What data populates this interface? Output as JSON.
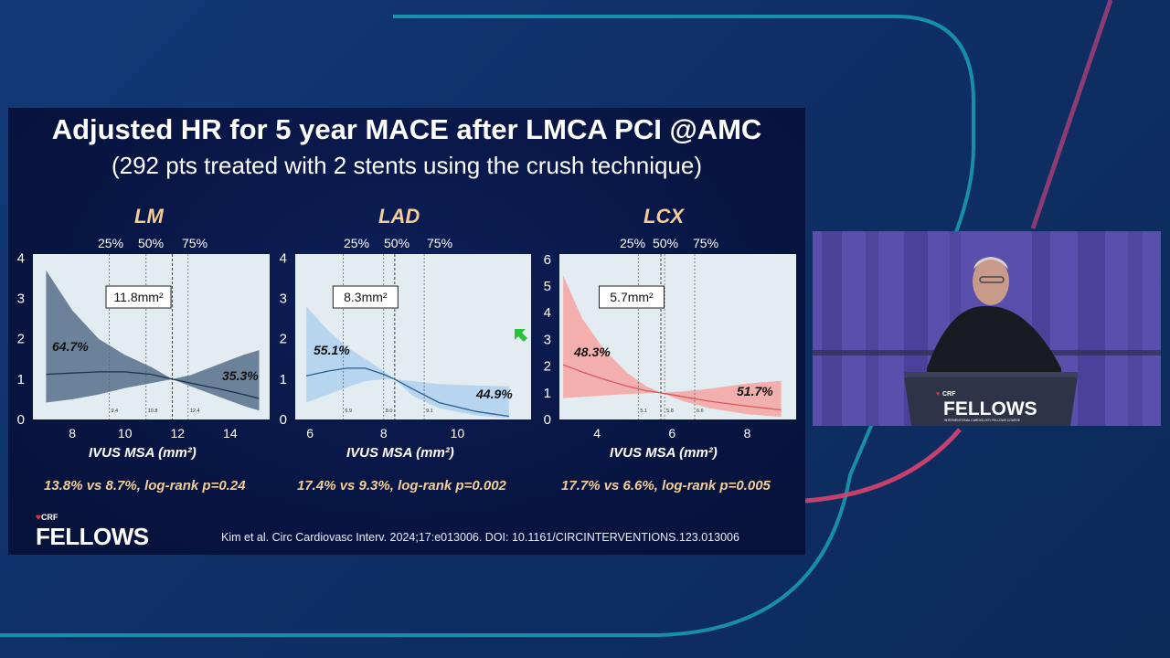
{
  "slide": {
    "title": "Adjusted HR for 5 year MACE after LMCA PCI @AMC",
    "subtitle": "(292 pts treated with 2 stents using the crush technique)",
    "citation": "Kim et al. Circ Cardiovasc Interv. 2024;17:e013006. DOI: 10.1161/CIRCINTERVENTIONS.123.013006",
    "logo_small": "CRF",
    "logo_big": "FELLOWS"
  },
  "video": {
    "podium_small": "CRF",
    "podium_big": "FELLOWS",
    "podium_tagline": "INTERVENTIONAL CARDIOLOGY FELLOWS COURSE"
  },
  "chart_data": [
    {
      "type": "line",
      "panel": "LM",
      "xlabel": "IVUS MSA (mm²)",
      "xticks": [
        8,
        10,
        12,
        14
      ],
      "xlim": [
        6.5,
        15.5
      ],
      "yticks": [
        0,
        1,
        2,
        3,
        4
      ],
      "ylim": [
        0,
        4.1
      ],
      "percentile_labels": [
        "25%",
        "50%",
        "75%"
      ],
      "percentile_values": [
        9.4,
        10.8,
        12.4
      ],
      "percentile_text": [
        "9.4",
        "10.8",
        "12.4"
      ],
      "reference_value": 11.8,
      "reference_label": "11.8mm²",
      "x": [
        7.0,
        8.0,
        9.0,
        10.0,
        11.0,
        11.8,
        12.5,
        13.5,
        14.5,
        15.1
      ],
      "hr": [
        1.12,
        1.15,
        1.18,
        1.18,
        1.12,
        1.0,
        0.9,
        0.77,
        0.62,
        0.52
      ],
      "lower": [
        0.42,
        0.5,
        0.62,
        0.78,
        0.9,
        1.0,
        0.82,
        0.58,
        0.34,
        0.22
      ],
      "upper": [
        3.7,
        2.7,
        2.0,
        1.6,
        1.3,
        1.0,
        1.1,
        1.35,
        1.6,
        1.72
      ],
      "left_annotation": "64.7%",
      "right_annotation": "35.3%",
      "stat": "13.8% vs 8.7%, log-rank p=0.24",
      "line_color": "#1c3350",
      "band_color": "#5d7790"
    },
    {
      "type": "line",
      "panel": "LAD",
      "xlabel": "IVUS MSA (mm²)",
      "xticks": [
        6,
        8,
        10
      ],
      "xlim": [
        5.6,
        12.0
      ],
      "yticks": [
        0,
        1,
        2,
        3,
        4
      ],
      "ylim": [
        0,
        4.1
      ],
      "percentile_labels": [
        "25%",
        "50%",
        "75%"
      ],
      "percentile_values": [
        6.9,
        8.0,
        9.1
      ],
      "percentile_text": [
        "6.9",
        "8.0",
        "9.1"
      ],
      "reference_value": 8.3,
      "reference_label": "8.3mm²",
      "x": [
        5.9,
        6.5,
        7.0,
        7.5,
        8.0,
        8.3,
        8.8,
        9.5,
        10.5,
        11.4
      ],
      "hr": [
        1.08,
        1.2,
        1.27,
        1.27,
        1.12,
        1.0,
        0.75,
        0.42,
        0.2,
        0.08
      ],
      "lower": [
        0.42,
        0.62,
        0.8,
        0.95,
        1.0,
        1.0,
        0.58,
        0.28,
        0.1,
        0.03
      ],
      "upper": [
        2.8,
        2.2,
        1.8,
        1.5,
        1.2,
        1.0,
        0.95,
        0.88,
        0.84,
        0.82
      ],
      "left_annotation": "55.1%",
      "right_annotation": "44.9%",
      "stat": "17.4% vs 9.3%, log-rank p=0.002",
      "line_color": "#2a5f92",
      "band_color": "#b3d3ee"
    },
    {
      "type": "line",
      "panel": "LCX",
      "xlabel": "IVUS MSA (mm²)",
      "xticks": [
        4,
        6,
        8
      ],
      "xlim": [
        3.0,
        9.3
      ],
      "yticks": [
        0,
        1,
        2,
        3,
        4,
        5,
        6
      ],
      "ylim": [
        0,
        6.2
      ],
      "percentile_labels": [
        "25%",
        "50%",
        "75%"
      ],
      "percentile_values": [
        5.1,
        5.8,
        6.6
      ],
      "percentile_text": [
        "5.1",
        "5.8",
        "6.6"
      ],
      "reference_value": 5.7,
      "reference_label": "5.7mm²",
      "x": [
        3.1,
        3.6,
        4.2,
        4.8,
        5.3,
        5.7,
        6.3,
        7.0,
        8.0,
        8.9
      ],
      "hr": [
        2.05,
        1.78,
        1.5,
        1.25,
        1.08,
        1.0,
        0.85,
        0.68,
        0.5,
        0.36
      ],
      "lower": [
        0.8,
        0.85,
        0.9,
        0.95,
        0.98,
        1.0,
        0.68,
        0.42,
        0.2,
        0.1
      ],
      "upper": [
        5.4,
        3.8,
        2.6,
        1.75,
        1.25,
        1.0,
        1.05,
        1.15,
        1.35,
        1.45
      ],
      "left_annotation": "48.3%",
      "right_annotation": "51.7%",
      "stat": "17.7% vs 6.6%, log-rank p=0.005",
      "line_color": "#d45b5b",
      "band_color": "#f4a9a6"
    }
  ]
}
